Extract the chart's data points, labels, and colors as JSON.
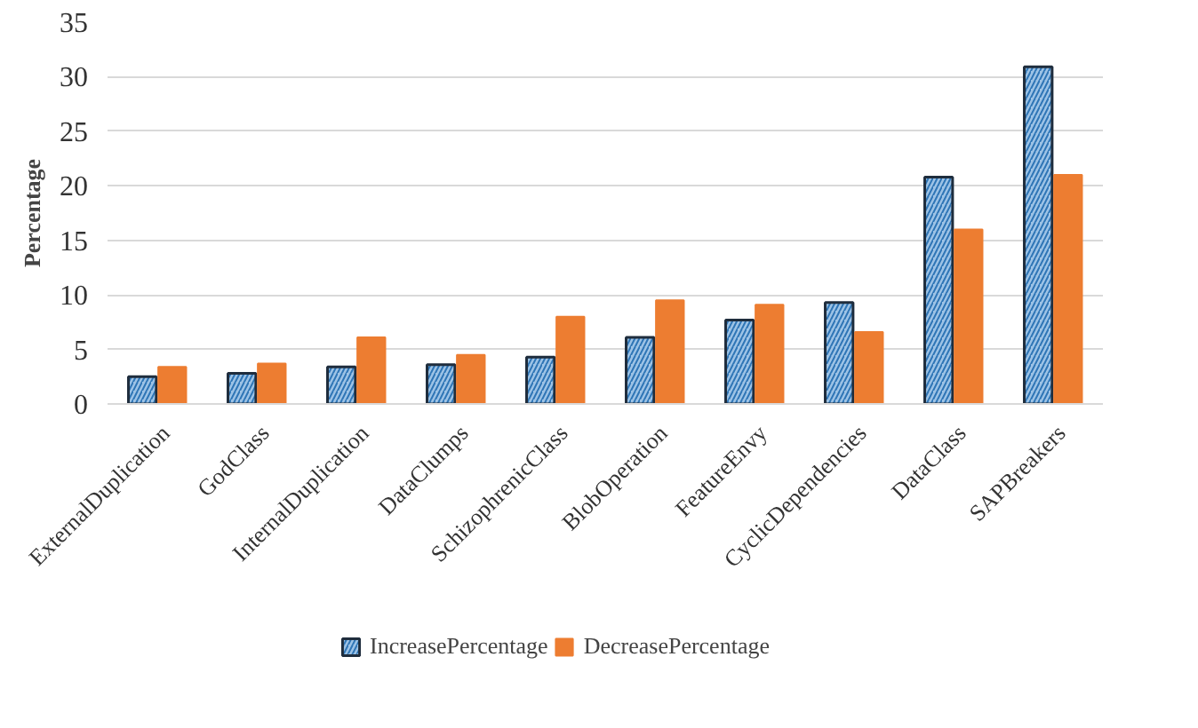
{
  "chart_data": {
    "type": "bar",
    "ylabel": "Percentage",
    "categories": [
      "ExternalDuplication",
      "GodClass",
      "InternalDuplication",
      "DataClumps",
      "SchizophrenicClass",
      "BlobOperation",
      "FeatureEnvy",
      "CyclicDependencies",
      "DataClass",
      "SAPBreakers"
    ],
    "series": [
      {
        "name": "IncreasePercentage",
        "color": "#9dc3e6",
        "values": [
          2.5,
          2.8,
          3.4,
          3.6,
          4.3,
          6.1,
          7.7,
          9.3,
          20.8,
          30.9
        ]
      },
      {
        "name": "DecreasePercentage",
        "color": "#ed7d31",
        "values": [
          3.4,
          3.7,
          6.1,
          4.5,
          8.0,
          9.5,
          9.1,
          6.6,
          16.0,
          21.0
        ]
      }
    ],
    "ylim": [
      0,
      35
    ],
    "yticks": [
      0,
      5,
      10,
      15,
      20,
      25,
      30,
      35
    ],
    "grid": "y",
    "legend": "bottom"
  }
}
